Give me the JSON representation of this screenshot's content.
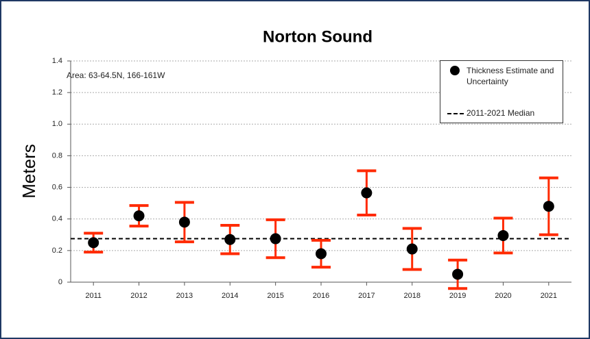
{
  "chart_data": {
    "type": "errorbar",
    "title": "Norton Sound",
    "y_label": "Meters",
    "annotation": "Area: 63-64.5N, 166-161W",
    "categories": [
      "2011",
      "2012",
      "2013",
      "2014",
      "2015",
      "2016",
      "2017",
      "2018",
      "2019",
      "2020",
      "2021"
    ],
    "series": [
      {
        "name": "Thickness Estimate and Uncertainty",
        "color": "#000000",
        "error_color": "#ff2a00",
        "values": [
          0.25,
          0.42,
          0.38,
          0.27,
          0.275,
          0.18,
          0.565,
          0.21,
          0.05,
          0.295,
          0.48
        ],
        "errors": [
          0.06,
          0.065,
          0.125,
          0.09,
          0.12,
          0.085,
          0.14,
          0.13,
          0.09,
          0.11,
          0.18
        ]
      }
    ],
    "median": {
      "name": "2011-2021 Median",
      "value": 0.275,
      "color": "#000000"
    },
    "ylim": [
      0,
      1.4
    ],
    "yticks": [
      0,
      0.2,
      0.4,
      0.6,
      0.8,
      {
        "value": 1,
        "label": "1.0"
      },
      1.2,
      1.4
    ],
    "grid": true,
    "legend": "upper right"
  }
}
